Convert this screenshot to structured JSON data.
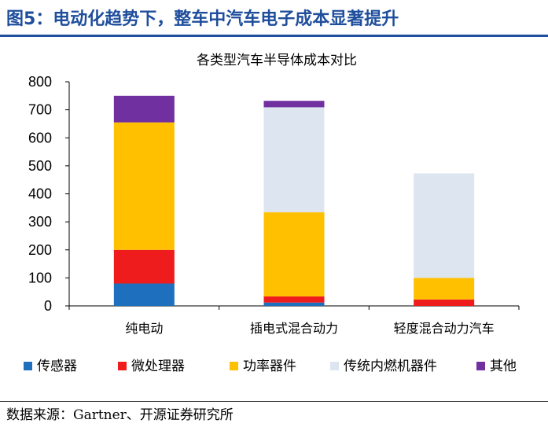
{
  "figure": {
    "title": "图5：电动化趋势下，整车中汽车电子成本显著提升",
    "source": "数据来源：Gartner、开源证券研究所"
  },
  "chart_data": {
    "type": "bar",
    "stacked": true,
    "title": "各类型汽车半导体成本对比",
    "categories": [
      "纯电动",
      "插电式混合动力",
      "轻度混合动力汽车"
    ],
    "ylim": [
      0,
      800
    ],
    "yticks": [
      0,
      100,
      200,
      300,
      400,
      500,
      600,
      700,
      800
    ],
    "grid": false,
    "legend_position": "bottom",
    "series": [
      {
        "name": "传感器",
        "color": "#1f6fbf",
        "values": [
          80,
          12,
          0
        ]
      },
      {
        "name": "微处理器",
        "color": "#ee1c1c",
        "values": [
          120,
          22,
          23
        ]
      },
      {
        "name": "功率器件",
        "color": "#ffc000",
        "values": [
          455,
          300,
          77
        ]
      },
      {
        "name": "传统内燃机器件",
        "color": "#dde6f0",
        "values": [
          0,
          375,
          373
        ]
      },
      {
        "name": "其他",
        "color": "#7030a0",
        "values": [
          95,
          23,
          0
        ]
      }
    ]
  }
}
